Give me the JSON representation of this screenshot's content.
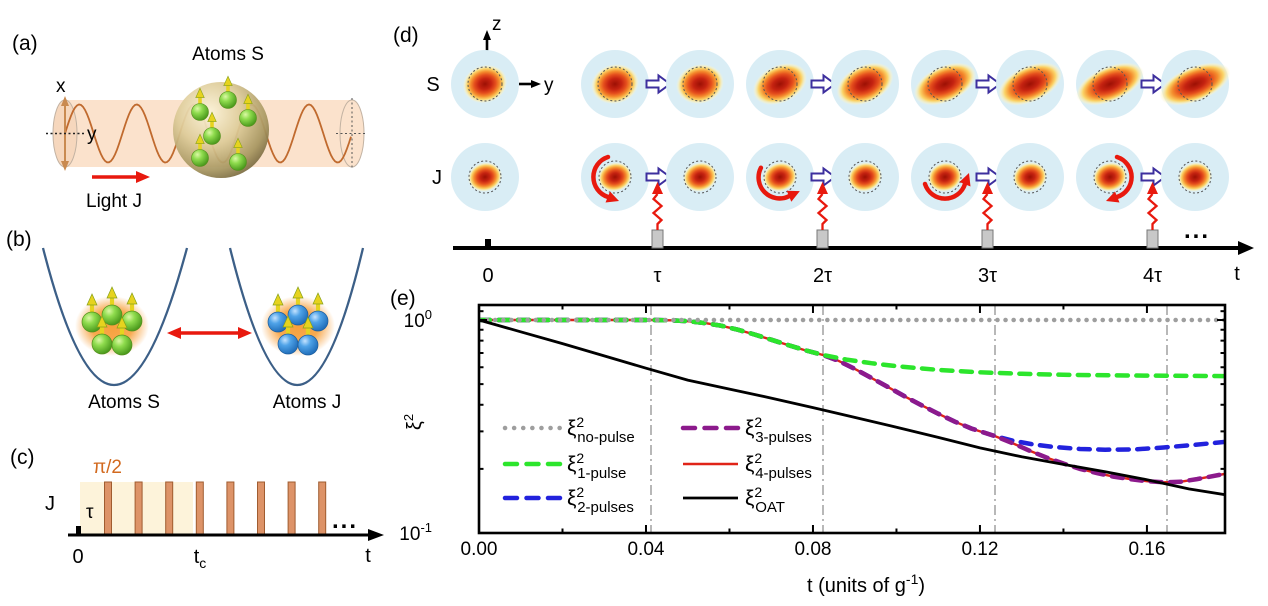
{
  "panels": {
    "a": {
      "label": "(a)",
      "atoms": "Atoms S",
      "light": "Light J",
      "axis_x": "x",
      "axis_y": "y"
    },
    "b": {
      "label": "(b)",
      "left": "Atoms S",
      "right": "Atoms J"
    },
    "c": {
      "label": "(c)",
      "pulse_angle": "π/2",
      "channel": "J",
      "tau": "τ",
      "zero": "0",
      "tc_base": "t",
      "tc_sub": "c",
      "time": "t",
      "ellipsis": "...",
      "pulse_count": 8
    },
    "d": {
      "label": "(d)",
      "row_s": "S",
      "row_j": "J",
      "axis_z": "z",
      "axis_y": "y",
      "timeline": [
        "0",
        "τ",
        "2τ",
        "3τ",
        "4τ"
      ],
      "time": "t",
      "ellipsis": "...",
      "group_count": 4
    }
  },
  "colors": {
    "tube": "#fbe2cc",
    "sine": "#c06a2e",
    "glow": "#f7a03c",
    "pulse_bar": "#dd9368",
    "pulse_shade": "#fdf3da",
    "bloch_circle": "#d9edf5",
    "red_accent": "#e8190e",
    "arrow_outline": "#3d2f9e",
    "parabola": "#3c5f87",
    "gray_pulse": "#c8c8c8"
  },
  "chart_data": {
    "type": "line",
    "title": "",
    "panel_label": "(e)",
    "xlabel_base": "t (units of g",
    "xlabel_sup": "-1",
    "xlabel_close": ")",
    "ylabel_base": "ξ",
    "ylabel_sup": "2",
    "xlim": [
      0,
      0.1787
    ],
    "ylim": [
      0.1,
      1.176
    ],
    "yscale": "log",
    "grid": false,
    "legend_position": "inside lower-left, two columns",
    "xticks": [
      {
        "v": 0.0,
        "label": "0.00"
      },
      {
        "v": 0.04,
        "label": "0.04"
      },
      {
        "v": 0.08,
        "label": "0.08"
      },
      {
        "v": 0.12,
        "label": "0.12"
      },
      {
        "v": 0.16,
        "label": "0.16"
      }
    ],
    "xminor": [
      0.02,
      0.06,
      0.1,
      0.14
    ],
    "yticks": [
      {
        "v": 1.0,
        "base": "10",
        "sup": "0"
      },
      {
        "v": 0.1,
        "base": "10",
        "sup": "-1"
      }
    ],
    "yminor": [
      0.2,
      0.3,
      0.4,
      0.5,
      0.6,
      0.7,
      0.8,
      0.9,
      1.1
    ],
    "vlines": [
      0.0412,
      0.0824,
      0.1236,
      0.1648
    ],
    "sym_base": "ξ",
    "sym_sup": "2",
    "series": [
      {
        "sym_sub": "no-pulse",
        "color": "#9e9e9e",
        "dash": "dotted",
        "width": 4.5,
        "points": [
          [
            0,
            1
          ],
          [
            0.179,
            1
          ]
        ]
      },
      {
        "sym_sub": "1-pulse",
        "color": "#2ce52c",
        "dash": "dashed",
        "width": 4.5,
        "points": [
          [
            0,
            1
          ],
          [
            0.02,
            1
          ],
          [
            0.0412,
            1
          ],
          [
            0.046,
            0.997
          ],
          [
            0.05,
            0.987
          ],
          [
            0.054,
            0.968
          ],
          [
            0.058,
            0.94
          ],
          [
            0.062,
            0.9
          ],
          [
            0.066,
            0.855
          ],
          [
            0.07,
            0.808
          ],
          [
            0.074,
            0.763
          ],
          [
            0.078,
            0.722
          ],
          [
            0.0824,
            0.685
          ],
          [
            0.088,
            0.652
          ],
          [
            0.094,
            0.627
          ],
          [
            0.1,
            0.607
          ],
          [
            0.11,
            0.583
          ],
          [
            0.12,
            0.568
          ],
          [
            0.13,
            0.559
          ],
          [
            0.14,
            0.553
          ],
          [
            0.155,
            0.549
          ],
          [
            0.179,
            0.545
          ]
        ]
      },
      {
        "sym_sub": "2-pulses",
        "color": "#2222dd",
        "dash": "dashed",
        "width": 4.5,
        "points": [
          [
            0,
            1
          ],
          [
            0.02,
            1
          ],
          [
            0.0412,
            1
          ],
          [
            0.046,
            0.997
          ],
          [
            0.05,
            0.987
          ],
          [
            0.054,
            0.968
          ],
          [
            0.058,
            0.94
          ],
          [
            0.062,
            0.9
          ],
          [
            0.066,
            0.855
          ],
          [
            0.07,
            0.808
          ],
          [
            0.074,
            0.763
          ],
          [
            0.078,
            0.722
          ],
          [
            0.0824,
            0.685
          ],
          [
            0.086,
            0.645
          ],
          [
            0.09,
            0.59
          ],
          [
            0.094,
            0.535
          ],
          [
            0.098,
            0.484
          ],
          [
            0.102,
            0.438
          ],
          [
            0.106,
            0.398
          ],
          [
            0.11,
            0.363
          ],
          [
            0.114,
            0.333
          ],
          [
            0.118,
            0.309
          ],
          [
            0.1236,
            0.285
          ],
          [
            0.128,
            0.271
          ],
          [
            0.133,
            0.26
          ],
          [
            0.138,
            0.253
          ],
          [
            0.144,
            0.248
          ],
          [
            0.15,
            0.246
          ],
          [
            0.157,
            0.247
          ],
          [
            0.164,
            0.252
          ],
          [
            0.171,
            0.259
          ],
          [
            0.179,
            0.268
          ]
        ]
      },
      {
        "sym_sub": "3-pulses",
        "color": "#8c1a8c",
        "dash": "dashed",
        "width": 4.5,
        "points": [
          [
            0,
            1
          ],
          [
            0.02,
            1
          ],
          [
            0.0412,
            1
          ],
          [
            0.046,
            0.997
          ],
          [
            0.05,
            0.987
          ],
          [
            0.054,
            0.968
          ],
          [
            0.058,
            0.94
          ],
          [
            0.062,
            0.9
          ],
          [
            0.066,
            0.855
          ],
          [
            0.07,
            0.808
          ],
          [
            0.074,
            0.763
          ],
          [
            0.078,
            0.722
          ],
          [
            0.0824,
            0.685
          ],
          [
            0.086,
            0.645
          ],
          [
            0.09,
            0.59
          ],
          [
            0.094,
            0.535
          ],
          [
            0.098,
            0.484
          ],
          [
            0.102,
            0.438
          ],
          [
            0.106,
            0.398
          ],
          [
            0.11,
            0.363
          ],
          [
            0.114,
            0.333
          ],
          [
            0.118,
            0.309
          ],
          [
            0.1236,
            0.285
          ],
          [
            0.128,
            0.263
          ],
          [
            0.132,
            0.243
          ],
          [
            0.136,
            0.226
          ],
          [
            0.14,
            0.212
          ],
          [
            0.144,
            0.2
          ],
          [
            0.148,
            0.191
          ],
          [
            0.152,
            0.184
          ],
          [
            0.156,
            0.179
          ],
          [
            0.16,
            0.175
          ],
          [
            0.164,
            0.173
          ],
          [
            0.168,
            0.174
          ],
          [
            0.172,
            0.179
          ],
          [
            0.179,
            0.19
          ]
        ]
      },
      {
        "sym_sub": "4-pulses",
        "color": "#e02418",
        "dash": "solid",
        "width": 2.4,
        "points": [
          [
            0,
            1
          ],
          [
            0.02,
            1
          ],
          [
            0.0412,
            1
          ],
          [
            0.046,
            0.997
          ],
          [
            0.05,
            0.987
          ],
          [
            0.054,
            0.968
          ],
          [
            0.058,
            0.94
          ],
          [
            0.062,
            0.9
          ],
          [
            0.066,
            0.855
          ],
          [
            0.07,
            0.808
          ],
          [
            0.074,
            0.763
          ],
          [
            0.078,
            0.722
          ],
          [
            0.0824,
            0.685
          ],
          [
            0.086,
            0.645
          ],
          [
            0.09,
            0.59
          ],
          [
            0.094,
            0.535
          ],
          [
            0.098,
            0.484
          ],
          [
            0.102,
            0.438
          ],
          [
            0.106,
            0.398
          ],
          [
            0.11,
            0.363
          ],
          [
            0.114,
            0.333
          ],
          [
            0.118,
            0.309
          ],
          [
            0.1236,
            0.285
          ],
          [
            0.128,
            0.263
          ],
          [
            0.132,
            0.243
          ],
          [
            0.136,
            0.226
          ],
          [
            0.14,
            0.212
          ],
          [
            0.144,
            0.2
          ],
          [
            0.148,
            0.191
          ],
          [
            0.152,
            0.184
          ],
          [
            0.156,
            0.179
          ],
          [
            0.16,
            0.175
          ],
          [
            0.164,
            0.173
          ],
          [
            0.168,
            0.174
          ],
          [
            0.172,
            0.179
          ],
          [
            0.179,
            0.19
          ]
        ]
      },
      {
        "sym_sub": "OAT",
        "color": "#000000",
        "dash": "solid",
        "width": 2.8,
        "points": [
          [
            0,
            1
          ],
          [
            0.01,
            0.88
          ],
          [
            0.02,
            0.775
          ],
          [
            0.03,
            0.678
          ],
          [
            0.04,
            0.594
          ],
          [
            0.05,
            0.522
          ],
          [
            0.06,
            0.474
          ],
          [
            0.07,
            0.43
          ],
          [
            0.08,
            0.388
          ],
          [
            0.09,
            0.349
          ],
          [
            0.1,
            0.314
          ],
          [
            0.11,
            0.281
          ],
          [
            0.12,
            0.251
          ],
          [
            0.13,
            0.228
          ],
          [
            0.14,
            0.21
          ],
          [
            0.15,
            0.194
          ],
          [
            0.16,
            0.178
          ],
          [
            0.17,
            0.161
          ],
          [
            0.179,
            0.151
          ]
        ]
      }
    ],
    "legend_columns": [
      [
        0,
        1,
        2
      ],
      [
        3,
        4,
        5
      ]
    ]
  }
}
